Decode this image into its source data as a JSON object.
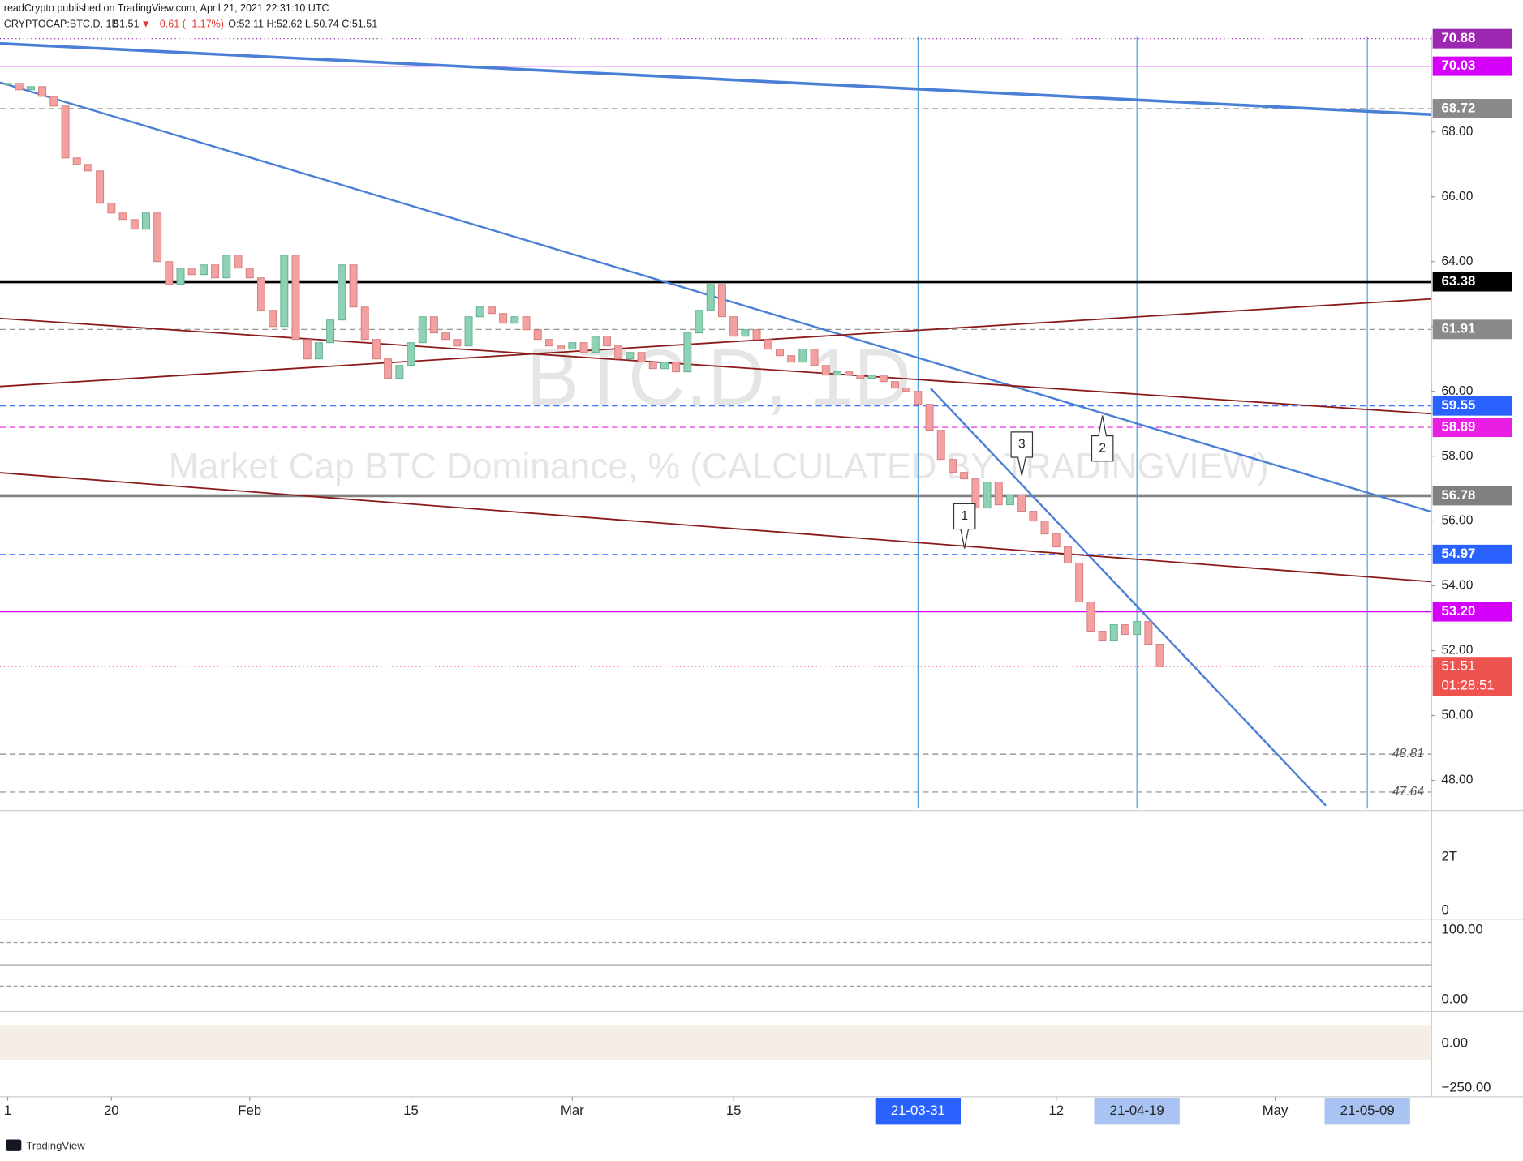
{
  "header": {
    "publisher": "readCrypto published on TradingView.com, April 21, 2021 22:31:10 UTC",
    "symbol": "CRYPTOCAP:BTC.D, 1D",
    "last": "51.51",
    "change": "▼ −0.61 (−1.17%)",
    "ohlc": "O:52.11 H:52.62 L:50.74 C:51.51",
    "brand": "TradingView"
  },
  "chart_data": {
    "type": "candlestick",
    "title": "BTC.D, 1D",
    "subtitle": "Market Cap BTC Dominance, % (CALCULATED BY TRADINGVIEW)",
    "close": [
      69.5,
      69.3,
      69.4,
      69.1,
      68.8,
      67.2,
      67.0,
      66.8,
      65.8,
      65.5,
      65.3,
      65.0,
      65.5,
      64.0,
      63.3,
      63.8,
      63.6,
      63.9,
      63.5,
      64.2,
      63.8,
      63.5,
      62.5,
      62.0,
      64.2,
      61.6,
      61.0,
      61.5,
      62.2,
      63.9,
      62.6,
      61.6,
      61.0,
      60.4,
      60.8,
      61.5,
      62.3,
      61.8,
      61.6,
      61.4,
      62.3,
      62.6,
      62.4,
      62.1,
      62.3,
      61.9,
      61.6,
      61.4,
      61.3,
      61.5,
      61.2,
      61.7,
      61.4,
      61.0,
      61.2,
      60.9,
      60.7,
      60.9,
      60.6,
      61.8,
      62.5,
      63.3,
      62.3,
      61.7,
      61.9,
      61.6,
      61.3,
      61.1,
      60.9,
      61.3,
      60.8,
      60.5,
      60.6,
      60.5,
      60.4,
      60.5,
      60.3,
      60.1,
      60.0,
      59.6,
      58.8,
      57.9,
      57.5,
      57.3,
      56.4,
      57.2,
      56.5,
      56.8,
      56.3,
      56.0,
      55.6,
      55.2,
      54.7,
      53.5,
      52.6,
      52.3,
      52.8,
      52.5,
      52.9,
      52.2,
      51.51
    ],
    "up_color": "#8fd1b4",
    "down_color": "#f2a0a0",
    "xlim": [
      -0.67,
      123.5
    ],
    "ylim": [
      47.13,
      70.93
    ],
    "xticks": [
      {
        "value": 0,
        "label": "1"
      },
      {
        "value": 9,
        "label": "20"
      },
      {
        "value": 21,
        "label": "Feb"
      },
      {
        "value": 35,
        "label": "15"
      },
      {
        "value": 49,
        "label": "Mar"
      },
      {
        "value": 63,
        "label": "15"
      },
      {
        "value": 79,
        "label": "21-03-31",
        "highlight": true
      },
      {
        "value": 91,
        "label": "12"
      },
      {
        "value": 98,
        "label": "21-04-19",
        "highlight": true
      },
      {
        "value": 110,
        "label": "May"
      },
      {
        "value": 118,
        "label": "21-05-09",
        "highlight": true
      }
    ],
    "yticks": [
      {
        "value": 48,
        "label": "48.00"
      },
      {
        "value": 50,
        "label": "50.00"
      },
      {
        "value": 52,
        "label": "52.00"
      },
      {
        "value": 54,
        "label": "54.00"
      },
      {
        "value": 56,
        "label": "56.00"
      },
      {
        "value": 58,
        "label": "58.00"
      },
      {
        "value": 60,
        "label": "60.00"
      },
      {
        "value": 62,
        "label": "62.00"
      },
      {
        "value": 64,
        "label": "64.00"
      },
      {
        "value": 66,
        "label": "66.00"
      },
      {
        "value": 68,
        "label": "68.00"
      }
    ],
    "levels": [
      {
        "value": 70.88,
        "label": "70.88",
        "color": "#9c27b0",
        "style": "dotted",
        "width": 1
      },
      {
        "value": 70.03,
        "label": "70.03",
        "color": "#d500f9",
        "style": "solid",
        "width": 1
      },
      {
        "value": 68.72,
        "label": "68.72",
        "color": "#8a8a8a",
        "style": "dashed",
        "width": 1
      },
      {
        "value": 63.38,
        "label": "63.38",
        "color": "#000000",
        "style": "solid",
        "width": 3
      },
      {
        "value": 61.91,
        "label": "61.91",
        "color": "#8a8a8a",
        "style": "dashed",
        "width": 1
      },
      {
        "value": 59.55,
        "label": "59.55",
        "color": "#2962ff",
        "style": "dashed",
        "width": 1
      },
      {
        "value": 58.89,
        "label": "58.89",
        "color": "#e91ee3",
        "style": "dashed",
        "width": 1
      },
      {
        "value": 56.78,
        "label": "56.78",
        "color": "#808080",
        "style": "solid",
        "width": 3
      },
      {
        "value": 54.97,
        "label": "54.97",
        "color": "#2962ff",
        "style": "dashed",
        "width": 1
      },
      {
        "value": 53.2,
        "label": "53.20",
        "color": "#d500f9",
        "style": "solid",
        "width": 1
      },
      {
        "value": 48.81,
        "label": "48.81",
        "color": "#8a8a8a",
        "style": "dashed",
        "width": 1,
        "plain": true
      },
      {
        "value": 47.64,
        "label": "47.64",
        "color": "#8a8a8a",
        "style": "dashed",
        "width": 1,
        "plain": true
      }
    ],
    "trendlines": [
      {
        "x": [
          -0.67,
          123.5
        ],
        "y": [
          70.73,
          68.54
        ],
        "color": "#4a7fd6",
        "width": 3
      },
      {
        "x": [
          -0.67,
          123.5
        ],
        "y": [
          69.53,
          56.29
        ],
        "color": "#4a7fd6",
        "width": 2
      },
      {
        "x": [
          80.1,
          114.4
        ],
        "y": [
          60.09,
          47.22
        ],
        "color": "#4a7fd6",
        "width": 2
      },
      {
        "x": [
          -0.67,
          123.5
        ],
        "y": [
          60.15,
          62.85
        ],
        "color": "#8b1a1a",
        "width": 1.5
      },
      {
        "x": [
          -0.67,
          123.5
        ],
        "y": [
          62.25,
          59.31
        ],
        "color": "#8b1a1a",
        "width": 1.5
      },
      {
        "x": [
          -0.67,
          123.5
        ],
        "y": [
          57.49,
          54.13
        ],
        "color": "#8b1a1a",
        "width": 1.5
      }
    ],
    "last_price": {
      "value": 51.51,
      "label": "51.51",
      "countdown": "01:28:51",
      "color": "#ef5350"
    },
    "annotations": [
      "1",
      "2",
      "3"
    ],
    "pane_labels": [
      "2T",
      "0",
      "100.00",
      "0.00",
      "0.00",
      "−250.00"
    ]
  }
}
